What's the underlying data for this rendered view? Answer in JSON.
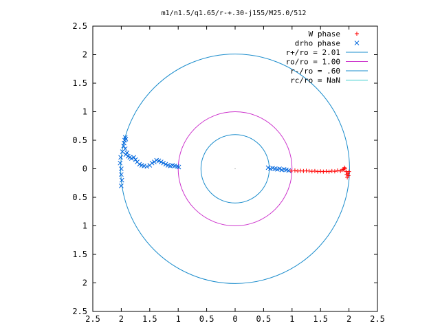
{
  "chart_data": {
    "type": "scatter",
    "title": "m1/n1.5/q1.65/r-+.30-j155/M25.0/512",
    "xlabel": "",
    "ylabel": "",
    "xlim": [
      -2.5,
      2.5
    ],
    "ylim": [
      -2.5,
      2.5
    ],
    "x_tick_labels": [
      "2.5",
      "2",
      "1.5",
      "1",
      "0.5",
      "0",
      "0.5",
      "1",
      "1.5",
      "2",
      "2.5"
    ],
    "y_tick_labels": [
      "2.5",
      "2",
      "1.5",
      "1",
      "0.5",
      "0",
      "0.5",
      "1",
      "1.5",
      "2",
      "2.5"
    ],
    "x_ticks": [
      -2.5,
      -2,
      -1.5,
      -1,
      -0.5,
      0,
      0.5,
      1,
      1.5,
      2,
      2.5
    ],
    "y_ticks": [
      2.5,
      2,
      1.5,
      1,
      0.5,
      0,
      -0.5,
      -1,
      -1.5,
      -2,
      -2.5
    ],
    "grid": false,
    "legend_position": "top-right",
    "series": [
      {
        "name": "W phase",
        "marker": "plus",
        "color": "#ff0000",
        "points": [
          [
            0.98,
            -0.04
          ],
          [
            1.05,
            -0.03
          ],
          [
            1.1,
            -0.04
          ],
          [
            1.15,
            -0.035
          ],
          [
            1.2,
            -0.04
          ],
          [
            1.25,
            -0.035
          ],
          [
            1.3,
            -0.04
          ],
          [
            1.35,
            -0.045
          ],
          [
            1.4,
            -0.04
          ],
          [
            1.45,
            -0.05
          ],
          [
            1.5,
            -0.045
          ],
          [
            1.55,
            -0.05
          ],
          [
            1.6,
            -0.045
          ],
          [
            1.65,
            -0.05
          ],
          [
            1.7,
            -0.04
          ],
          [
            1.75,
            -0.045
          ],
          [
            1.8,
            -0.03
          ],
          [
            1.85,
            -0.04
          ],
          [
            1.88,
            -0.02
          ],
          [
            1.9,
            -0.01
          ],
          [
            1.92,
            0.02
          ],
          [
            1.93,
            0.0
          ],
          [
            1.95,
            -0.05
          ],
          [
            1.96,
            -0.1
          ],
          [
            1.97,
            -0.15
          ],
          [
            1.98,
            -0.08
          ],
          [
            1.99,
            -0.12
          ],
          [
            2.0,
            -0.05
          ]
        ]
      },
      {
        "name": "drho phase",
        "marker": "cross",
        "color": "#0066dd",
        "points": [
          [
            -2.0,
            0.0
          ],
          [
            -2.02,
            0.1
          ],
          [
            -2.0,
            -0.1
          ],
          [
            -1.99,
            -0.2
          ],
          [
            -2.0,
            -0.3
          ],
          [
            -2.01,
            0.2
          ],
          [
            -1.98,
            0.3
          ],
          [
            -1.96,
            0.4
          ],
          [
            -1.95,
            0.45
          ],
          [
            -1.94,
            0.5
          ],
          [
            -1.93,
            0.55
          ],
          [
            -1.92,
            0.52
          ],
          [
            -1.93,
            0.35
          ],
          [
            -1.92,
            0.25
          ],
          [
            -1.9,
            0.28
          ],
          [
            -1.88,
            0.22
          ],
          [
            -1.85,
            0.2
          ],
          [
            -1.82,
            0.18
          ],
          [
            -1.78,
            0.2
          ],
          [
            -1.75,
            0.16
          ],
          [
            -1.72,
            0.12
          ],
          [
            -1.68,
            0.08
          ],
          [
            -1.64,
            0.06
          ],
          [
            -1.6,
            0.05
          ],
          [
            -1.55,
            0.04
          ],
          [
            -1.5,
            0.06
          ],
          [
            -1.46,
            0.1
          ],
          [
            -1.42,
            0.12
          ],
          [
            -1.38,
            0.15
          ],
          [
            -1.34,
            0.14
          ],
          [
            -1.3,
            0.12
          ],
          [
            -1.26,
            0.1
          ],
          [
            -1.22,
            0.08
          ],
          [
            -1.18,
            0.06
          ],
          [
            -1.14,
            0.05
          ],
          [
            -1.1,
            0.06
          ],
          [
            -1.06,
            0.05
          ],
          [
            -1.02,
            0.04
          ],
          [
            -0.99,
            0.03
          ],
          [
            0.58,
            0.02
          ],
          [
            0.62,
            0.0
          ],
          [
            0.66,
            0.01
          ],
          [
            0.7,
            0.0
          ],
          [
            0.74,
            -0.01
          ],
          [
            0.78,
            0.0
          ],
          [
            0.82,
            -0.02
          ],
          [
            0.86,
            -0.01
          ],
          [
            0.9,
            -0.02
          ],
          [
            0.94,
            -0.03
          ]
        ]
      }
    ],
    "circles": [
      {
        "name": "r+/ro = 2.01",
        "radius": 2.01,
        "color": "#1a8ccc"
      },
      {
        "name": "ro/ro = 1.00",
        "radius": 1.0,
        "color": "#cc33cc"
      },
      {
        "name": "r-/ro = .60",
        "radius": 0.6,
        "color": "#1a8ccc"
      },
      {
        "name": "rc/ro = NaN",
        "radius": null,
        "color": "#33cccc"
      }
    ]
  }
}
